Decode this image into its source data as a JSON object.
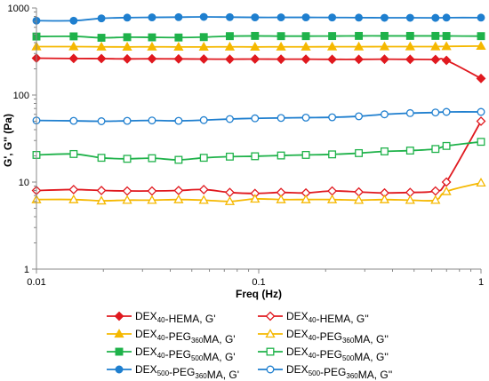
{
  "chart_data": {
    "type": "line",
    "xlabel": "Freq (Hz)",
    "ylabel": "G', G'' (Pa)",
    "xscale": "log",
    "yscale": "log",
    "xlim": [
      0.01,
      1
    ],
    "ylim": [
      1,
      1000
    ],
    "x_ticks": [
      "0.01",
      "0.1",
      "1"
    ],
    "y_ticks": [
      "1",
      "10",
      "100",
      "1000"
    ],
    "grid": false,
    "legend_placement": "bottom",
    "series": [
      {
        "name": "DEX40-HEMA, G'",
        "legend": {
          "pre": "DEX",
          "sub": "40",
          "post": "-HEMA, G'"
        },
        "color": "#e0191f",
        "marker": "diamond",
        "filled": true,
        "x": [
          0.01,
          0.0147,
          0.0196,
          0.0256,
          0.0331,
          0.0436,
          0.0566,
          0.0741,
          0.0962,
          0.126,
          0.163,
          0.214,
          0.282,
          0.368,
          0.48,
          0.624,
          0.699,
          1.0
        ],
        "y": [
          265,
          263,
          262,
          260,
          261,
          260,
          259,
          258,
          259,
          258,
          258,
          257,
          257,
          258,
          257,
          256,
          250,
          155
        ]
      },
      {
        "name": "DEX40-HEMA, G''",
        "legend": {
          "pre": "DEX",
          "sub": "40",
          "post": "-HEMA, G''"
        },
        "color": "#e0191f",
        "marker": "diamond",
        "filled": false,
        "x": [
          0.01,
          0.0147,
          0.0196,
          0.0256,
          0.0331,
          0.0436,
          0.0566,
          0.0741,
          0.0962,
          0.126,
          0.163,
          0.214,
          0.282,
          0.368,
          0.48,
          0.624,
          0.699,
          1.0
        ],
        "y": [
          8.0,
          8.2,
          8.0,
          7.9,
          7.9,
          8.0,
          8.2,
          7.6,
          7.4,
          7.6,
          7.5,
          7.9,
          7.7,
          7.5,
          7.6,
          7.9,
          10,
          50
        ]
      },
      {
        "name": "DEX40-PEG360MA, G'",
        "legend": {
          "pre": "DEX",
          "sub": "40",
          "mid": "-PEG",
          "sub2": "360",
          "post": "MA, G'"
        },
        "color": "#f5b800",
        "marker": "triangle",
        "filled": true,
        "x": [
          0.01,
          0.0147,
          0.0196,
          0.0256,
          0.0331,
          0.0436,
          0.0566,
          0.0741,
          0.0962,
          0.126,
          0.163,
          0.214,
          0.282,
          0.368,
          0.48,
          0.624,
          0.699,
          1.0
        ],
        "y": [
          360,
          360,
          358,
          357,
          358,
          357,
          357,
          358,
          357,
          358,
          358,
          359,
          359,
          360,
          360,
          360,
          362,
          365
        ]
      },
      {
        "name": "DEX40-PEG360MA, G''",
        "legend": {
          "pre": "DEX",
          "sub": "40",
          "mid": "-PEG",
          "sub2": "360",
          "post": "MA, G''"
        },
        "color": "#f5b800",
        "marker": "triangle",
        "filled": false,
        "x": [
          0.01,
          0.0147,
          0.0196,
          0.0256,
          0.0331,
          0.0436,
          0.0566,
          0.0741,
          0.0962,
          0.126,
          0.163,
          0.214,
          0.282,
          0.368,
          0.48,
          0.624,
          0.699,
          1.0
        ],
        "y": [
          6.3,
          6.3,
          6.1,
          6.2,
          6.2,
          6.3,
          6.2,
          6.0,
          6.4,
          6.3,
          6.3,
          6.3,
          6.2,
          6.3,
          6.2,
          6.2,
          7.8,
          9.8
        ]
      },
      {
        "name": "DEX40-PEG500MA, G'",
        "legend": {
          "pre": "DEX",
          "sub": "40",
          "mid": "-PEG",
          "sub2": "500",
          "post": "MA, G'"
        },
        "color": "#1fb24a",
        "marker": "square",
        "filled": true,
        "x": [
          0.01,
          0.0147,
          0.0196,
          0.0256,
          0.0331,
          0.0436,
          0.0566,
          0.0741,
          0.0962,
          0.126,
          0.163,
          0.214,
          0.282,
          0.368,
          0.48,
          0.624,
          0.699,
          1.0
        ],
        "y": [
          470,
          472,
          455,
          462,
          460,
          458,
          463,
          475,
          478,
          475,
          475,
          476,
          478,
          478,
          478,
          478,
          477,
          475
        ]
      },
      {
        "name": "DEX40-PEG500MA, G''",
        "legend": {
          "pre": "DEX",
          "sub": "40",
          "mid": "-PEG",
          "sub2": "500",
          "post": "MA, G''"
        },
        "color": "#1fb24a",
        "marker": "square",
        "filled": false,
        "x": [
          0.01,
          0.0147,
          0.0196,
          0.0256,
          0.0331,
          0.0436,
          0.0566,
          0.0741,
          0.0962,
          0.126,
          0.163,
          0.214,
          0.282,
          0.368,
          0.48,
          0.624,
          0.699,
          1.0
        ],
        "y": [
          20.5,
          21,
          19,
          18.5,
          18.8,
          18,
          19,
          19.6,
          19.8,
          20.2,
          20.5,
          20.8,
          21.5,
          22.5,
          23,
          24,
          26,
          29
        ]
      },
      {
        "name": "DEX500-PEG360MA, G'",
        "legend": {
          "pre": "DEX",
          "sub": "500",
          "mid": "-PEG",
          "sub2": "360",
          "post": "MA, G'"
        },
        "color": "#1f7fcf",
        "marker": "circle",
        "filled": true,
        "x": [
          0.01,
          0.0147,
          0.0196,
          0.0256,
          0.0331,
          0.0436,
          0.0566,
          0.0741,
          0.0962,
          0.126,
          0.163,
          0.214,
          0.282,
          0.368,
          0.48,
          0.624,
          0.699,
          1.0
        ],
        "y": [
          715,
          715,
          760,
          775,
          780,
          785,
          790,
          785,
          780,
          780,
          780,
          778,
          775,
          772,
          772,
          770,
          775,
          775
        ]
      },
      {
        "name": "DEX500-PEG360MA, G''",
        "legend": {
          "pre": "DEX",
          "sub": "500",
          "mid": "-PEG",
          "sub2": "360",
          "post": "MA, G''"
        },
        "color": "#1f7fcf",
        "marker": "circle",
        "filled": false,
        "x": [
          0.01,
          0.0147,
          0.0196,
          0.0256,
          0.0331,
          0.0436,
          0.0566,
          0.0741,
          0.0962,
          0.126,
          0.163,
          0.214,
          0.282,
          0.368,
          0.48,
          0.624,
          0.699,
          1.0
        ],
        "y": [
          51,
          50.5,
          50,
          50.5,
          51,
          50.5,
          51.5,
          53,
          54,
          54.5,
          55,
          55.5,
          57,
          60,
          62,
          63,
          64,
          64
        ]
      }
    ]
  }
}
